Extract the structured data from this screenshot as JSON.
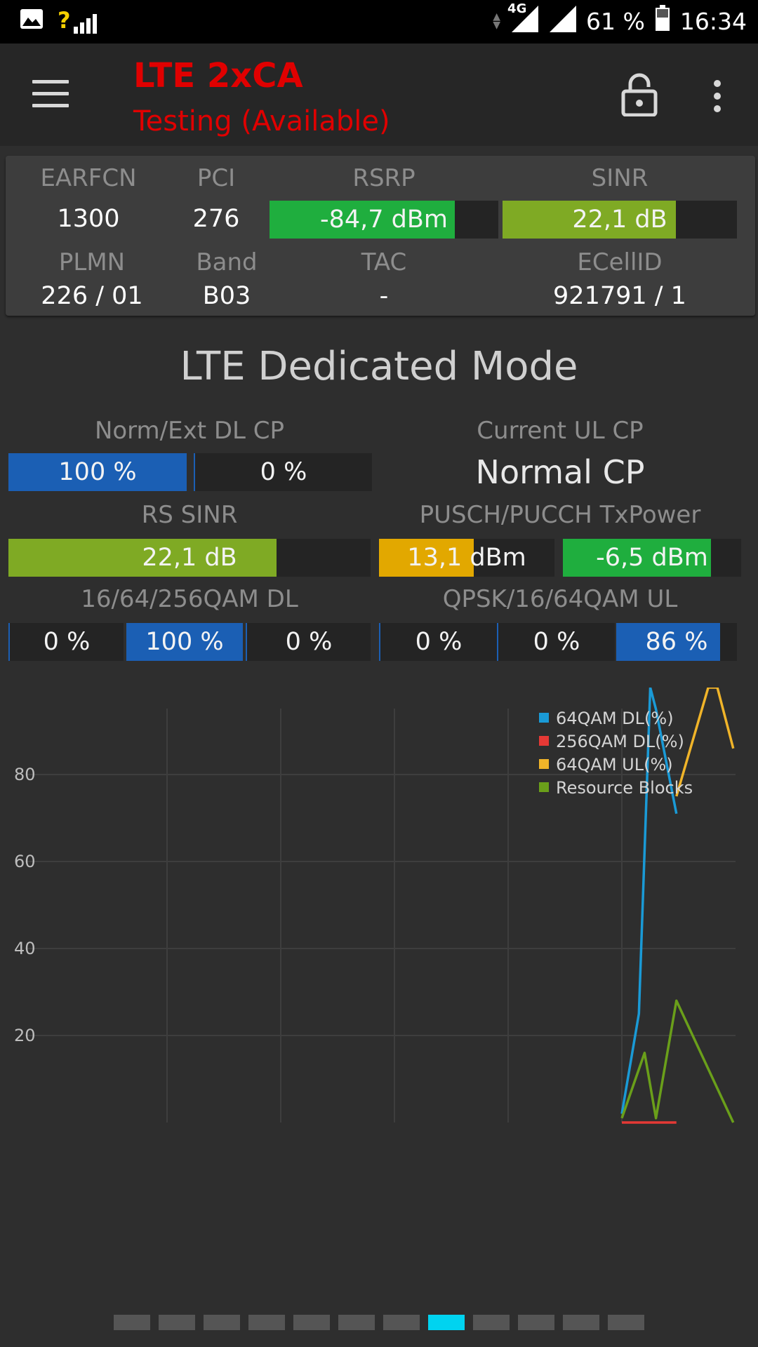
{
  "status_bar": {
    "image_icon": "image-icon",
    "signal_question": "?",
    "network_type": "4G",
    "battery": "61 %",
    "time": "16:34"
  },
  "toolbar": {
    "title": "LTE 2xCA",
    "subtitle": "Testing (Available)",
    "menu_icon": "hamburger-menu-icon",
    "lock_icon": "lock-icon",
    "more_icon": "more-vert-icon"
  },
  "info_card": {
    "earfcn_label": "EARFCN",
    "earfcn_value": "1300",
    "pci_label": "PCI",
    "pci_value": "276",
    "rsrp_label": "RSRP",
    "rsrp_value": "-84,7 dBm",
    "rsrp_fraction": 0.81,
    "sinr_label": "SINR",
    "sinr_value": "22,1 dB",
    "sinr_fraction": 0.74,
    "plmn_label": "PLMN",
    "plmn_value": "226 / 01",
    "band_label": "Band",
    "band_value": "B03",
    "tac_label": "TAC",
    "tac_value": "-",
    "ecellid_label": "ECellID",
    "ecellid_value": "921791 / 1",
    "colors": {
      "rsrp": "#1fae3e",
      "sinr": "#7faa24"
    }
  },
  "main": {
    "section_title": "LTE Dedicated Mode",
    "dl_cp": {
      "label": "Norm/Ext DL CP",
      "normal": "100 %",
      "extended": "0 %",
      "normal_fraction": 1.0,
      "extended_fraction": 0.0
    },
    "ul_cp": {
      "label": "Current UL CP",
      "value": "Normal CP"
    },
    "rs_sinr": {
      "label": "RS SINR",
      "value": "22,1 dB",
      "fraction": 0.74
    },
    "tx_power": {
      "label": "PUSCH/PUCCH TxPower",
      "pusch": "13,1 dBm",
      "pusch_fraction": 0.54,
      "pucch": "-6,5 dBm",
      "pucch_fraction": 0.83
    },
    "qam_dl": {
      "label": "16/64/256QAM DL",
      "qam16": "0 %",
      "qam64": "100 %",
      "qam256": "0 %",
      "fractions": [
        0,
        1,
        0
      ]
    },
    "qam_ul": {
      "label": "QPSK/16/64QAM UL",
      "qpsk": "0 %",
      "qam16": "0 %",
      "qam64": "86 %",
      "fractions": [
        0,
        0,
        0.86
      ]
    },
    "colors": {
      "blue": "#1b5fb4",
      "yellow": "#e2a800",
      "green": "#1fae3e",
      "olive": "#7faa24"
    }
  },
  "chart_data": {
    "type": "line",
    "title": "",
    "xlabel": "",
    "ylabel": "",
    "x_ticks": [
      "10",
      "20",
      "30",
      "40",
      "50"
    ],
    "y_ticks": [
      "20",
      "40",
      "60",
      "80"
    ],
    "xlim": [
      0,
      60
    ],
    "ylim": [
      0,
      100
    ],
    "grid": true,
    "legend_position": "top-right",
    "series": [
      {
        "name": "64QAM DL(%)",
        "color": "#1a9ad6",
        "x": [
          50,
          51.5,
          52.5,
          53,
          54.8
        ],
        "y": [
          2,
          25,
          100,
          95,
          71
        ]
      },
      {
        "name": "256QAM DL(%)",
        "color": "#e53935",
        "x": [
          50,
          54.8
        ],
        "y": [
          0,
          0
        ]
      },
      {
        "name": "64QAM UL(%)",
        "color": "#f0b429",
        "x": [
          54.8,
          57.6,
          58.4,
          59.8
        ],
        "y": [
          75,
          100,
          100,
          86
        ]
      },
      {
        "name": "Resource Blocks",
        "color": "#6a9f1a",
        "x": [
          50,
          52,
          53,
          54.8,
          59.8
        ],
        "y": [
          1,
          16,
          1,
          28,
          0
        ]
      }
    ]
  },
  "pager": {
    "count": 12,
    "active_index": 7
  }
}
